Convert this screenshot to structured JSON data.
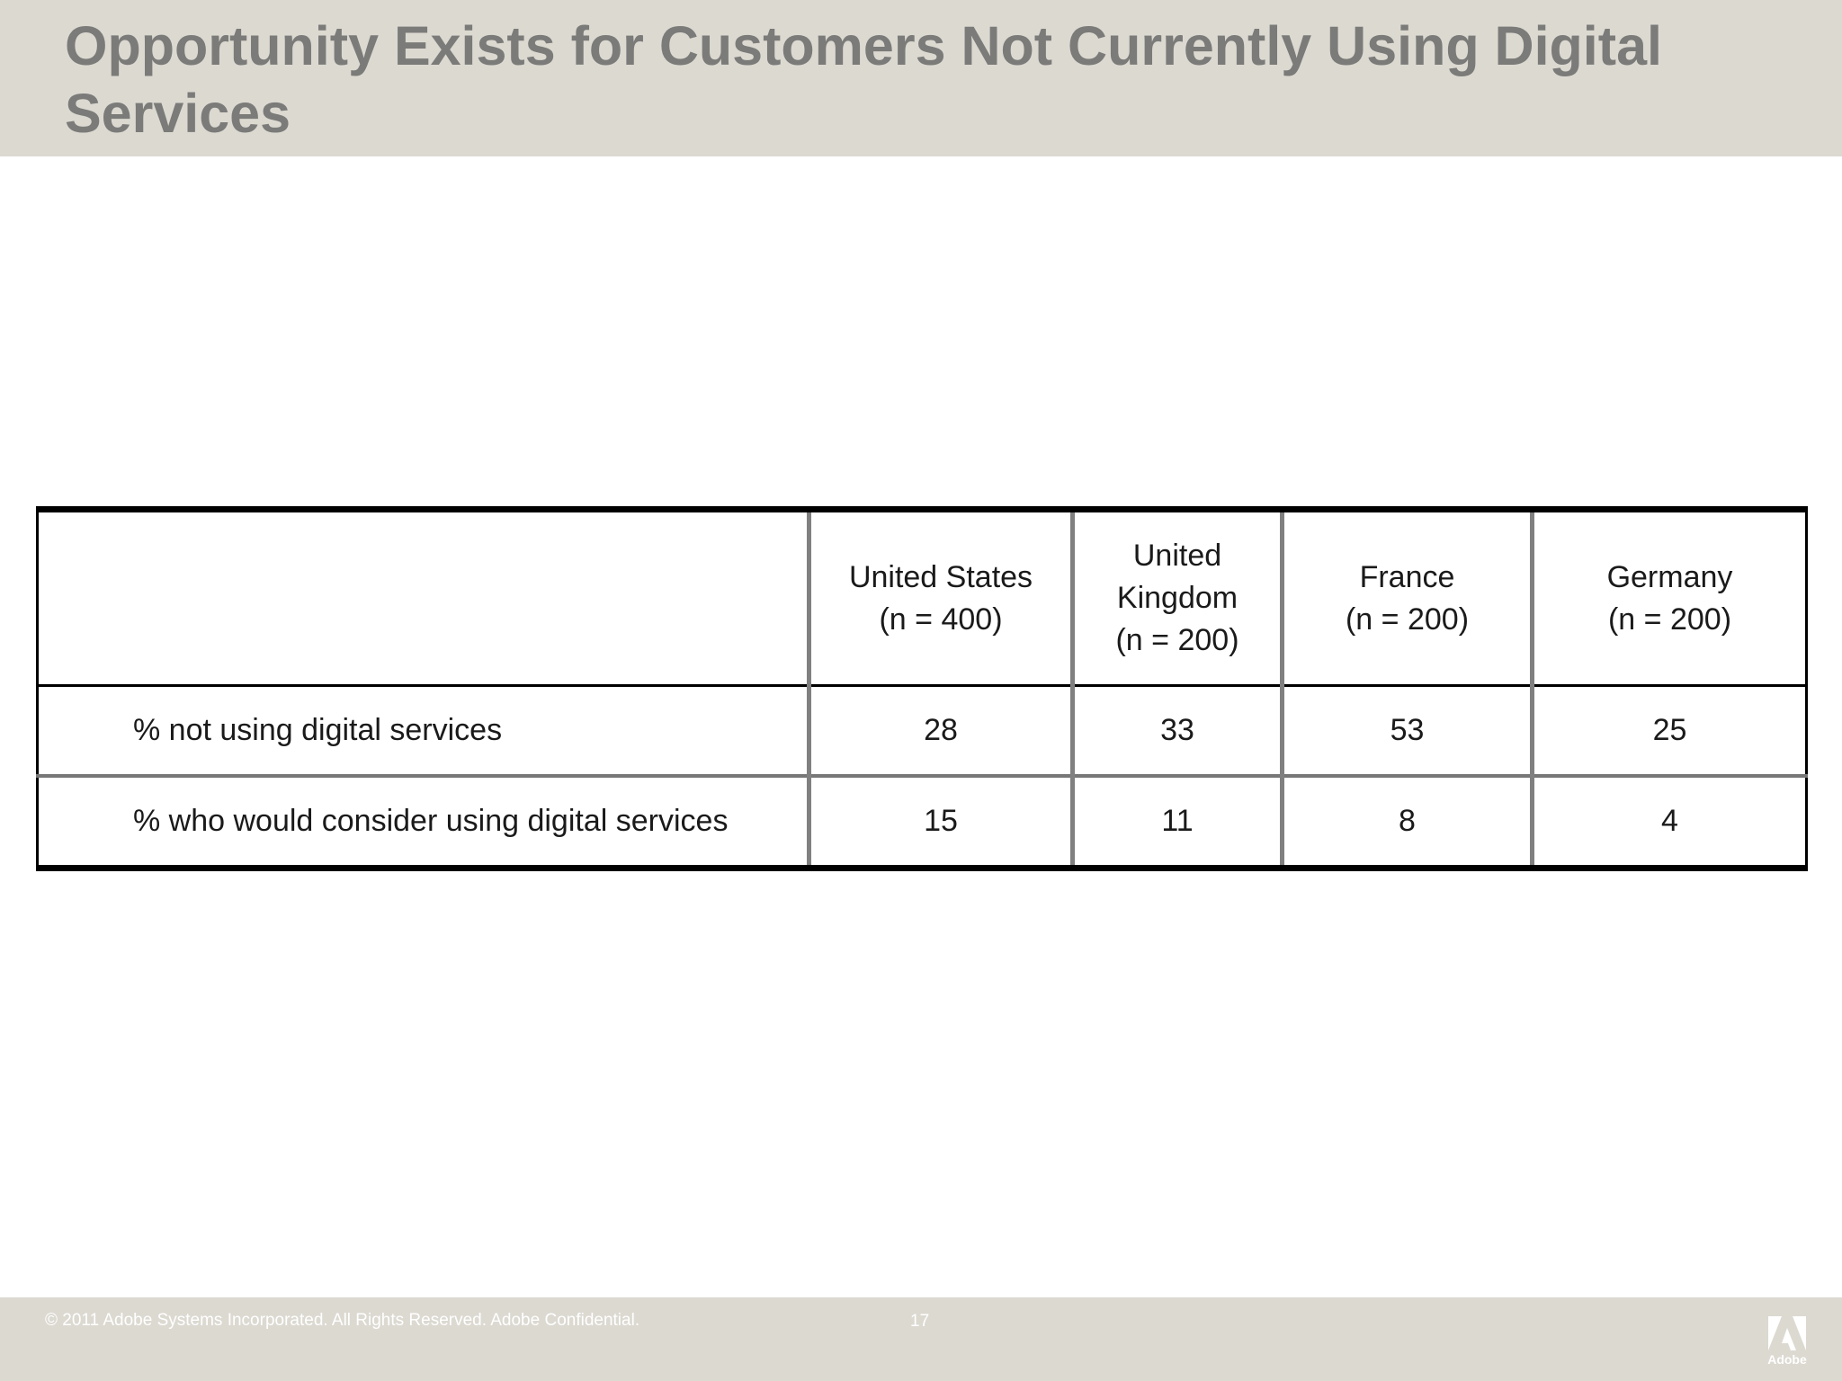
{
  "slide": {
    "title": "Opportunity Exists for Customers Not Currently Using Digital Services"
  },
  "table": {
    "columns": [
      {
        "name_lines": [
          "United States"
        ],
        "sample": "(n = 400)"
      },
      {
        "name_lines": [
          "United",
          "Kingdom"
        ],
        "sample": "(n = 200)"
      },
      {
        "name_lines": [
          "France"
        ],
        "sample": "(n = 200)"
      },
      {
        "name_lines": [
          "Germany"
        ],
        "sample": "(n = 200)"
      }
    ],
    "rows": [
      {
        "label": "% not using digital services",
        "values": [
          "28",
          "33",
          "53",
          "25"
        ]
      },
      {
        "label": "% who would consider using digital services",
        "values": [
          "15",
          "11",
          "8",
          "4"
        ]
      }
    ]
  },
  "footer": {
    "copyright": "© 2011 Adobe Systems Incorporated.  All Rights Reserved.  Adobe Confidential.",
    "page_number": "17",
    "logo_text": "Adobe"
  },
  "colors": {
    "title_bar_bg": "#dcd9d1",
    "title_text": "#7b7b79",
    "footer_bg": "#dcd9d1",
    "footer_text": "#ffffff",
    "table_border": "#000000",
    "column_divider": "#808080"
  },
  "icons": {
    "logo": "adobe-logo-icon"
  }
}
